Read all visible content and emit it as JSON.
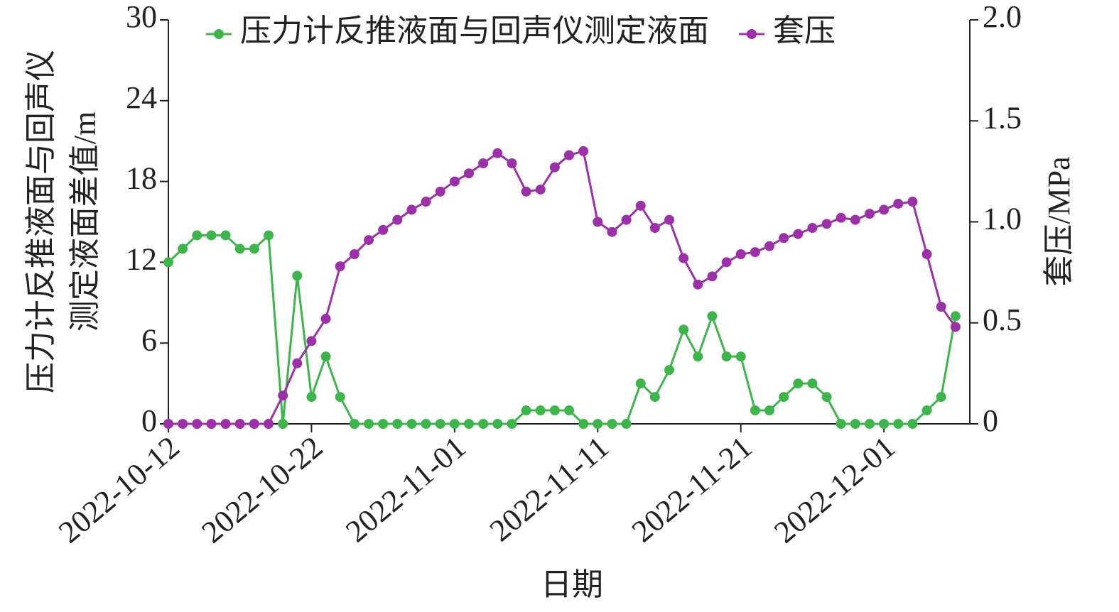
{
  "chart_data": {
    "type": "line",
    "xlabel": "日期",
    "ylabel": [
      "压力计反推液面与回声仪",
      "测定液面差值/m"
    ],
    "y2label": "套压/MPa",
    "legend": "top",
    "x": [
      "2022-10-12",
      "2022-10-13",
      "2022-10-14",
      "2022-10-15",
      "2022-10-16",
      "2022-10-17",
      "2022-10-18",
      "2022-10-19",
      "2022-10-20",
      "2022-10-21",
      "2022-10-22",
      "2022-10-23",
      "2022-10-24",
      "2022-10-25",
      "2022-10-26",
      "2022-10-27",
      "2022-10-28",
      "2022-10-29",
      "2022-10-30",
      "2022-10-31",
      "2022-11-01",
      "2022-11-02",
      "2022-11-03",
      "2022-11-04",
      "2022-11-05",
      "2022-11-06",
      "2022-11-07",
      "2022-11-08",
      "2022-11-09",
      "2022-11-10",
      "2022-11-11",
      "2022-11-12",
      "2022-11-13",
      "2022-11-14",
      "2022-11-15",
      "2022-11-16",
      "2022-11-17",
      "2022-11-18",
      "2022-11-19",
      "2022-11-20",
      "2022-11-21",
      "2022-11-22",
      "2022-11-23",
      "2022-11-24",
      "2022-11-25",
      "2022-11-26",
      "2022-11-27",
      "2022-11-28",
      "2022-11-29",
      "2022-11-30",
      "2022-12-01",
      "2022-12-02",
      "2022-12-03",
      "2022-12-04",
      "2022-12-05",
      "2022-12-06"
    ],
    "xlim": [
      "2022-10-12",
      "2022-12-07"
    ],
    "xticks": [
      "2022-10-12",
      "2022-10-22",
      "2022-11-01",
      "2022-11-11",
      "2022-11-21",
      "2022-12-01"
    ],
    "ylim": [
      0,
      30
    ],
    "yticks": [
      0,
      6,
      12,
      18,
      24,
      30
    ],
    "y2lim": [
      0,
      2
    ],
    "y2ticks": [
      0,
      0.5,
      {
        "value": 1,
        "label": "1.0"
      },
      1.5,
      {
        "value": 2,
        "label": "2.0"
      }
    ],
    "series": [
      {
        "name": "压力计反推液面与回声仪测定液面",
        "color": "#3db54a",
        "axis": "y",
        "values": [
          12,
          13,
          14,
          14,
          14,
          13,
          13,
          14,
          0,
          11,
          2,
          5,
          2,
          0,
          0,
          0,
          0,
          0,
          0,
          0,
          0,
          0,
          0,
          0,
          0,
          1,
          1,
          1,
          1,
          0,
          0,
          0,
          0,
          3,
          2,
          4,
          7,
          5,
          8,
          5,
          5,
          1,
          1,
          2,
          3,
          3,
          2,
          0,
          0,
          0,
          0,
          0,
          0,
          1,
          2,
          8
        ]
      },
      {
        "name": "套压",
        "color": "#9b30a8",
        "axis": "y2",
        "values": [
          0,
          0,
          0,
          0,
          0,
          0,
          0,
          0,
          0.14,
          0.3,
          0.41,
          0.52,
          0.78,
          0.84,
          0.91,
          0.96,
          1.01,
          1.06,
          1.1,
          1.15,
          1.2,
          1.24,
          1.29,
          1.34,
          1.29,
          1.15,
          1.16,
          1.27,
          1.33,
          1.35,
          1.0,
          0.95,
          1.01,
          1.08,
          0.97,
          1.01,
          0.82,
          0.69,
          0.73,
          0.8,
          0.84,
          0.85,
          0.88,
          0.92,
          0.94,
          0.97,
          0.99,
          1.02,
          1.01,
          1.04,
          1.06,
          1.09,
          1.1,
          0.84,
          0.58,
          0.48
        ]
      }
    ]
  }
}
